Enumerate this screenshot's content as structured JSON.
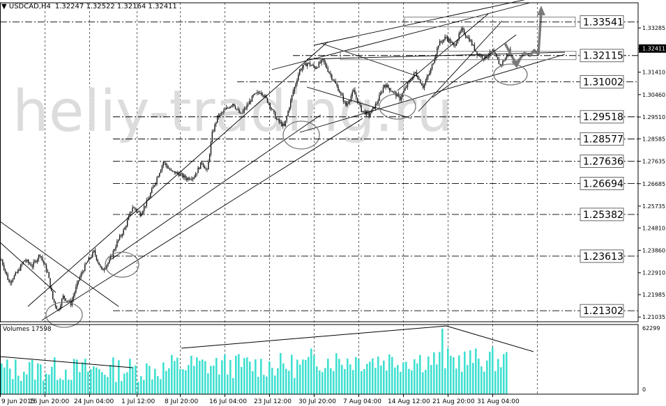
{
  "header": {
    "symbol": "USDCAD,H4",
    "ohlc": "1.32247 1.32522 1.32164 1.32411"
  },
  "watermark": "heliy-trading.ru",
  "chart_data": {
    "type": "candlestick",
    "symbol": "USDCAD",
    "timeframe": "H4",
    "ylim": [
      1.20835,
      1.3435
    ],
    "price_ticks": [
      "1.33285",
      "1.32411",
      "1.31410",
      "1.30460",
      "1.29510",
      "1.28585",
      "1.27635",
      "1.26685",
      "1.25735",
      "1.24810",
      "1.23860",
      "1.22910",
      "1.21985",
      "1.21035"
    ],
    "current_price": "1.32411",
    "x_labels": [
      "9 Jun 2015",
      "16 Jun 20:00",
      "24 Jun 04:00",
      "1 Jul 12:00",
      "8 Jul 20:00",
      "16 Jul 04:00",
      "23 Jul 12:00",
      "30 Jul 20:00",
      "7 Aug 04:00",
      "14 Aug 12:00",
      "21 Aug 20:00",
      "31 Aug 04:00"
    ],
    "levels": [
      "1.33541",
      "1.32115",
      "1.31002",
      "1.29518",
      "1.28577",
      "1.27636",
      "1.26694",
      "1.25382",
      "1.23613",
      "1.21302"
    ],
    "close_path": [
      [
        0,
        1.2345
      ],
      [
        6,
        1.225
      ],
      [
        12,
        1.229
      ],
      [
        18,
        1.2345
      ],
      [
        24,
        1.232
      ],
      [
        30,
        1.237
      ],
      [
        36,
        1.229
      ],
      [
        40,
        1.218
      ],
      [
        44,
        1.213
      ],
      [
        48,
        1.219
      ],
      [
        54,
        1.216
      ],
      [
        60,
        1.226
      ],
      [
        66,
        1.233
      ],
      [
        72,
        1.238
      ],
      [
        78,
        1.23
      ],
      [
        84,
        1.234
      ],
      [
        90,
        1.242
      ],
      [
        96,
        1.248
      ],
      [
        102,
        1.257
      ],
      [
        108,
        1.254
      ],
      [
        114,
        1.26
      ],
      [
        120,
        1.268
      ],
      [
        126,
        1.276
      ],
      [
        132,
        1.272
      ],
      [
        138,
        1.271
      ],
      [
        144,
        1.269
      ],
      [
        150,
        1.27
      ],
      [
        156,
        1.276
      ],
      [
        160,
        1.272
      ],
      [
        164,
        1.288
      ],
      [
        168,
        1.295
      ],
      [
        174,
        1.298
      ],
      [
        180,
        1.301
      ],
      [
        186,
        1.296
      ],
      [
        190,
        1.299
      ],
      [
        196,
        1.304
      ],
      [
        202,
        1.306
      ],
      [
        208,
        1.301
      ],
      [
        214,
        1.294
      ],
      [
        220,
        1.291
      ],
      [
        226,
        1.304
      ],
      [
        232,
        1.315
      ],
      [
        238,
        1.318
      ],
      [
        244,
        1.316
      ],
      [
        250,
        1.319
      ],
      [
        256,
        1.313
      ],
      [
        262,
        1.307
      ],
      [
        268,
        1.3
      ],
      [
        274,
        1.306
      ],
      [
        280,
        1.298
      ],
      [
        286,
        1.296
      ],
      [
        292,
        1.301
      ],
      [
        298,
        1.309
      ],
      [
        304,
        1.306
      ],
      [
        310,
        1.303
      ],
      [
        316,
        1.309
      ],
      [
        322,
        1.314
      ],
      [
        328,
        1.308
      ],
      [
        334,
        1.315
      ],
      [
        340,
        1.326
      ],
      [
        346,
        1.329
      ],
      [
        352,
        1.325
      ],
      [
        358,
        1.332
      ],
      [
        364,
        1.328
      ],
      [
        370,
        1.322
      ],
      [
        376,
        1.32
      ],
      [
        382,
        1.323
      ],
      [
        388,
        1.317
      ],
      [
        392,
        1.32
      ],
      [
        396,
        1.3241
      ]
    ],
    "volume_max_label": "62299",
    "volume_zero_label": "0"
  },
  "volume_panel": {
    "label": "Volumes 17598"
  }
}
